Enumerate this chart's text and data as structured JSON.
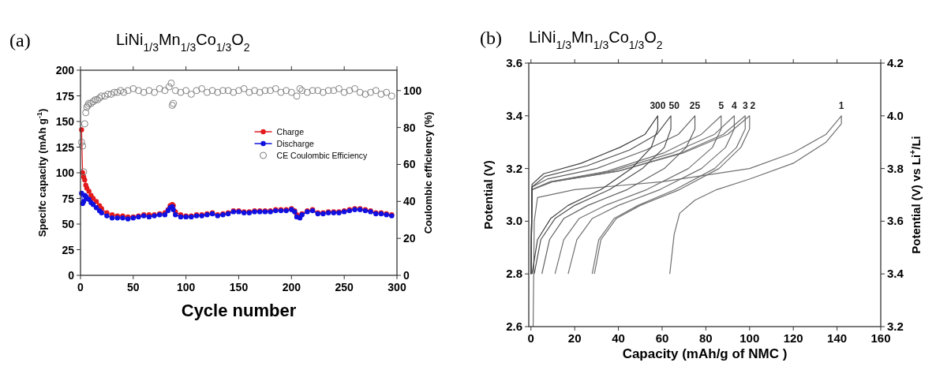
{
  "chart_data": [
    {
      "type": "line",
      "title": "LiNi$_{1/3}$Mn$_{1/3}$Co$_{1/3}$O$_{2}$",
      "annotations": [
        "(a)"
      ],
      "xlabel": "Cycle number",
      "ylabel": "Specifc capacity (mAh g$^{-1}$)",
      "y2label": "Coulombic efficiency (%)",
      "xlim": [
        0,
        300
      ],
      "xticks": [
        0,
        50,
        100,
        150,
        200,
        250,
        300
      ],
      "ylim": [
        0,
        200
      ],
      "yticks": [
        0,
        25,
        50,
        75,
        100,
        125,
        150,
        175,
        200
      ],
      "y2lim": [
        0,
        111
      ],
      "y2ticks": [
        0,
        20,
        40,
        60,
        80,
        100
      ],
      "legend": "right",
      "marker": "circle",
      "grid": false,
      "series": [
        {
          "name": "Charge",
          "color": "#e31a1c",
          "x": [
            1,
            2,
            3,
            4,
            5,
            6,
            8,
            10,
            12,
            15,
            18,
            20,
            25,
            30,
            35,
            40,
            45,
            50,
            55,
            60,
            65,
            70,
            75,
            80,
            83,
            85,
            87,
            88,
            90,
            95,
            100,
            105,
            110,
            115,
            120,
            125,
            130,
            135,
            140,
            145,
            150,
            155,
            160,
            165,
            170,
            175,
            180,
            185,
            190,
            195,
            200,
            203,
            205,
            208,
            210,
            215,
            220,
            225,
            230,
            235,
            240,
            245,
            250,
            255,
            260,
            265,
            270,
            275,
            280,
            285,
            290,
            295
          ],
          "values": [
            142,
            100,
            96,
            93,
            88,
            85,
            82,
            78,
            75,
            72,
            68,
            65,
            61,
            59,
            58,
            58,
            57,
            57,
            58,
            59,
            59,
            59,
            60,
            61,
            64,
            68,
            69,
            68,
            62,
            59,
            58,
            58,
            59,
            59,
            60,
            61,
            59,
            60,
            61,
            63,
            63,
            62,
            62,
            63,
            63,
            63,
            63,
            64,
            64,
            64,
            65,
            63,
            59,
            58,
            60,
            63,
            64,
            61,
            61,
            62,
            62,
            62,
            63,
            64,
            65,
            65,
            64,
            63,
            61,
            61,
            60,
            59
          ]
        },
        {
          "name": "Discharge",
          "color": "#1010e0",
          "x": [
            1,
            2,
            3,
            4,
            5,
            6,
            8,
            10,
            12,
            15,
            18,
            20,
            25,
            30,
            35,
            40,
            45,
            50,
            55,
            60,
            65,
            70,
            75,
            80,
            83,
            85,
            87,
            88,
            90,
            95,
            100,
            105,
            110,
            115,
            120,
            125,
            130,
            135,
            140,
            145,
            150,
            155,
            160,
            165,
            170,
            175,
            180,
            185,
            190,
            195,
            200,
            203,
            205,
            208,
            210,
            215,
            220,
            225,
            230,
            235,
            240,
            245,
            250,
            255,
            260,
            265,
            270,
            275,
            280,
            285,
            290,
            295
          ],
          "values": [
            80,
            70,
            72,
            78,
            77,
            75,
            74,
            71,
            69,
            66,
            63,
            61,
            58,
            56,
            56,
            56,
            55,
            56,
            57,
            58,
            57,
            58,
            59,
            59,
            63,
            66,
            67,
            64,
            59,
            57,
            57,
            57,
            58,
            58,
            59,
            60,
            58,
            59,
            60,
            62,
            62,
            61,
            61,
            62,
            62,
            62,
            62,
            63,
            63,
            63,
            64,
            62,
            57,
            56,
            59,
            62,
            63,
            60,
            60,
            61,
            61,
            61,
            62,
            63,
            64,
            64,
            63,
            62,
            60,
            60,
            59,
            58
          ]
        },
        {
          "name": "CE Coulombic Efficiency",
          "type": "scatter",
          "axis": "y2",
          "color": "#777777",
          "x": [
            1,
            2,
            3,
            4,
            5,
            6,
            7,
            8,
            10,
            12,
            14,
            16,
            18,
            20,
            23,
            26,
            29,
            32,
            35,
            38,
            41,
            45,
            50,
            55,
            60,
            65,
            70,
            75,
            80,
            84,
            86,
            87,
            88,
            90,
            95,
            100,
            105,
            110,
            115,
            120,
            125,
            130,
            135,
            140,
            145,
            150,
            155,
            160,
            165,
            170,
            175,
            180,
            185,
            190,
            195,
            200,
            205,
            208,
            210,
            215,
            220,
            225,
            230,
            235,
            240,
            245,
            250,
            255,
            260,
            265,
            270,
            275,
            280,
            285,
            290,
            295
          ],
          "values": [
            72,
            70,
            56,
            82,
            88,
            91,
            92,
            93,
            93,
            94,
            95,
            95,
            96,
            97,
            97,
            98,
            98,
            99,
            99,
            100,
            99,
            100,
            101,
            100,
            99,
            100,
            99,
            101,
            100,
            102,
            104,
            92,
            93,
            100,
            99,
            100,
            98,
            100,
            101,
            99,
            100,
            99,
            100,
            100,
            99,
            100,
            101,
            99,
            100,
            99,
            100,
            100,
            101,
            99,
            100,
            99,
            97,
            101,
            100,
            99,
            100,
            100,
            99,
            100,
            100,
            101,
            99,
            100,
            101,
            99,
            98,
            99,
            100,
            98,
            99,
            97
          ]
        }
      ]
    },
    {
      "type": "line",
      "title": "LiNi$_{1/3}$Mn$_{1/3}$Co$_{1/3}$O$_{2}$",
      "annotations": [
        "(b)"
      ],
      "xlabel": "Capacity (mAh/g of NMC )",
      "ylabel": "Potential (V)",
      "y2label": "Potential (V) vs Li$^{+}$/Li",
      "xlim": [
        -1,
        160
      ],
      "xticks": [
        0,
        20,
        40,
        60,
        80,
        100,
        120,
        140,
        160
      ],
      "ylim": [
        2.6,
        3.6
      ],
      "yticks": [
        {
          "value": 2.6,
          "label": "2.6"
        },
        {
          "value": 2.8,
          "label": "2.8"
        },
        {
          "value": 3.0,
          "label": "3.0"
        },
        {
          "value": 3.2,
          "label": "3.2"
        },
        {
          "value": 3.4,
          "label": "3.4"
        },
        {
          "value": 3.6,
          "label": "3.6"
        }
      ],
      "y2lim": [
        3.2,
        4.2
      ],
      "y2ticks": [
        {
          "value": 3.2,
          "label": "3.2"
        },
        {
          "value": 3.4,
          "label": "3.4"
        },
        {
          "value": 3.6,
          "label": "3.6"
        },
        {
          "value": 3.8,
          "label": "3.8"
        },
        {
          "value": 4.0,
          "label": "4.0"
        },
        {
          "value": 4.2,
          "label": "4.2"
        }
      ],
      "legend": false,
      "grid": false,
      "series": [
        {
          "name": "1",
          "color": "#707070",
          "x": [
            1,
            1.5,
            3,
            20,
            60,
            100,
            120,
            135,
            142,
            142,
            135,
            120,
            100,
            85,
            75,
            68,
            65.5,
            63.5
          ],
          "values": [
            2.6,
            3.0,
            3.09,
            3.12,
            3.15,
            3.2,
            3.26,
            3.33,
            3.4,
            3.37,
            3.3,
            3.22,
            3.16,
            3.12,
            3.08,
            3.03,
            2.95,
            2.8
          ]
        },
        {
          "name": "2",
          "color": "#707070",
          "x": [
            0,
            0.5,
            10,
            40,
            70,
            90,
            100,
            100,
            96,
            86,
            68,
            50,
            39,
            32,
            29
          ],
          "values": [
            2.8,
            3.12,
            3.15,
            3.19,
            3.26,
            3.33,
            3.4,
            3.35,
            3.28,
            3.2,
            3.12,
            3.06,
            3.01,
            2.93,
            2.8
          ]
        },
        {
          "name": "3",
          "color": "#707070",
          "x": [
            0,
            0.5,
            10,
            40,
            69,
            88,
            98,
            98,
            94,
            84,
            66,
            49,
            38,
            31,
            28
          ],
          "values": [
            2.8,
            3.12,
            3.15,
            3.19,
            3.26,
            3.33,
            3.4,
            3.35,
            3.28,
            3.2,
            3.12,
            3.06,
            3.01,
            2.93,
            2.8
          ]
        },
        {
          "name": "4",
          "color": "#707070",
          "x": [
            0,
            0.5,
            9.3,
            37,
            65,
            84,
            93,
            93,
            89,
            78,
            59,
            40,
            28,
            21,
            17
          ],
          "values": [
            2.8,
            3.12,
            3.15,
            3.19,
            3.26,
            3.33,
            3.4,
            3.35,
            3.28,
            3.2,
            3.12,
            3.06,
            3.01,
            2.93,
            2.8
          ]
        },
        {
          "name": "5",
          "color": "#707070",
          "x": [
            0,
            0.5,
            8.7,
            35,
            61,
            78,
            87,
            87,
            83,
            72,
            53,
            34,
            22,
            15,
            11
          ],
          "values": [
            2.8,
            3.12,
            3.15,
            3.19,
            3.26,
            3.33,
            3.4,
            3.35,
            3.28,
            3.2,
            3.12,
            3.06,
            3.01,
            2.93,
            2.8
          ]
        },
        {
          "name": "25",
          "color": "#606060",
          "x": [
            0,
            0.5,
            7.5,
            30,
            52.5,
            67.5,
            75,
            75,
            71,
            61,
            44,
            26,
            15,
            8.5,
            5
          ],
          "values": [
            2.8,
            3.13,
            3.16,
            3.2,
            3.27,
            3.33,
            3.4,
            3.35,
            3.28,
            3.2,
            3.12,
            3.06,
            3.01,
            2.93,
            2.8
          ]
        },
        {
          "name": "50",
          "color": "#505050",
          "x": [
            0,
            0.5,
            6.4,
            25.6,
            45,
            57.6,
            64,
            64,
            61,
            51,
            36,
            20,
            11,
            4.5,
            1.5
          ],
          "values": [
            2.8,
            3.13,
            3.17,
            3.21,
            3.27,
            3.33,
            3.4,
            3.35,
            3.28,
            3.2,
            3.12,
            3.06,
            3.01,
            2.93,
            2.8
          ]
        },
        {
          "name": "300",
          "color": "#404040",
          "x": [
            0,
            0.5,
            5.8,
            23,
            40.6,
            52.2,
            58,
            58,
            55,
            46,
            32,
            17,
            9,
            3,
            0.5
          ],
          "values": [
            2.8,
            3.14,
            3.18,
            3.22,
            3.28,
            3.33,
            3.4,
            3.35,
            3.28,
            3.2,
            3.12,
            3.06,
            3.01,
            2.93,
            2.8
          ]
        }
      ]
    }
  ]
}
